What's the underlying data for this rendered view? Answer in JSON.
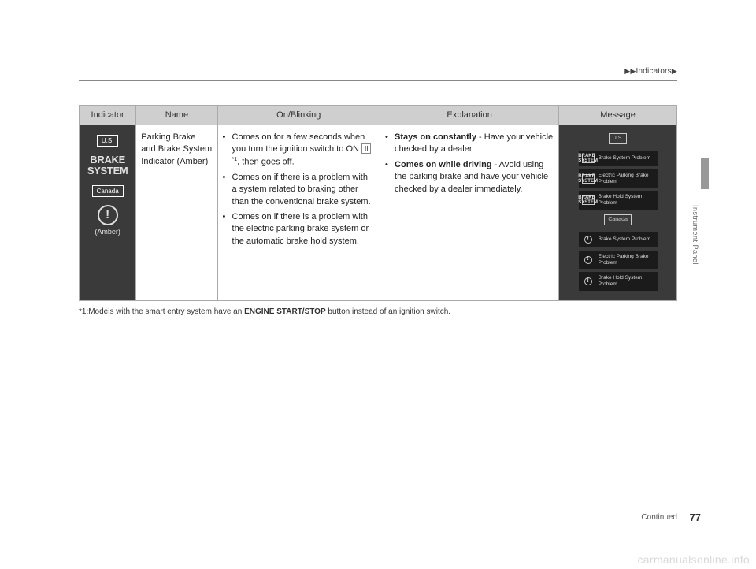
{
  "breadcrumb": {
    "sep": "▶",
    "label": "Indicators"
  },
  "columns": {
    "indicator": "Indicator",
    "name": "Name",
    "onblinking": "On/Blinking",
    "explanation": "Explanation",
    "message": "Message"
  },
  "row": {
    "indicator": {
      "region1": "U.S.",
      "brake_line1": "BRAKE",
      "brake_line2": "SYSTEM",
      "region2": "Canada",
      "exclaim": "!",
      "amber": "(Amber)"
    },
    "name": "Parking Brake and Brake System Indicator (Amber)",
    "onblinking": {
      "b1_pre": "Comes on for a few seconds when you turn the ignition switch to ON ",
      "b1_key": "II",
      "b1_sup": "*1",
      "b1_post": ", then goes off.",
      "b2": "Comes on if there is a problem with a system related to braking other than the conventional brake system.",
      "b3": "Comes on if there is a problem with the electric parking brake system or the automatic brake hold system."
    },
    "explanation": {
      "b1_bold": "Stays on constantly",
      "b1_rest": " - Have your vehicle checked by a dealer.",
      "b2_bold": "Comes on while driving",
      "b2_rest": " - Avoid using the parking brake and have your vehicle checked by a dealer immediately."
    },
    "messages": {
      "region_us": "U.S.",
      "region_ca": "Canada",
      "m1": "Brake System Problem",
      "m2": "Electric Parking Brake Problem",
      "m3": "Brake Hold System Problem",
      "m4": "Brake System Problem",
      "m5": "Electric Parking Brake Problem",
      "m6": "Brake Hold System Problem"
    }
  },
  "footnote": {
    "pre": "*1:Models with the smart entry system have an ",
    "bold": "ENGINE START/STOP",
    "post": " button instead of an ignition switch."
  },
  "side_label": "Instrument Panel",
  "continued": "Continued",
  "page_number": "77",
  "watermark": "carmanualsonline.info"
}
